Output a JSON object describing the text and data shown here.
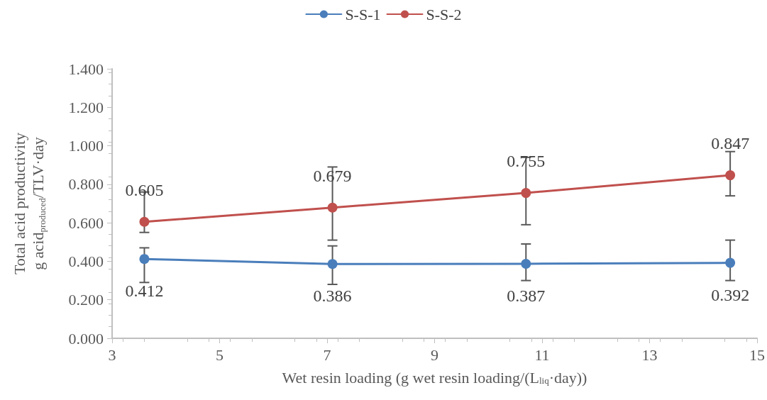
{
  "chart_data": {
    "type": "line",
    "xlabel": "Wet resin loading (g wet resin loading/(L$_{liq}$·day))",
    "ylabel": "Total acid productivity\ng acid$_{produced}$/TLV·day",
    "x": [
      3.6,
      7.1,
      10.7,
      14.5
    ],
    "series": [
      {
        "name": "S-S-1",
        "color": "#4a7ebb",
        "values": [
          0.412,
          0.386,
          0.387,
          0.392
        ],
        "errors": [
          [
            0.29,
            0.47
          ],
          [
            0.28,
            0.48
          ],
          [
            0.3,
            0.49
          ],
          [
            0.3,
            0.51
          ]
        ]
      },
      {
        "name": "S-S-2",
        "color": "#c0504d",
        "values": [
          0.605,
          0.679,
          0.755,
          0.847
        ],
        "errors": [
          [
            0.55,
            0.76
          ],
          [
            0.51,
            0.89
          ],
          [
            0.59,
            0.94
          ],
          [
            0.74,
            0.97
          ]
        ]
      }
    ],
    "xlim": [
      3,
      15
    ],
    "xticks": [
      3,
      5,
      7,
      9,
      11,
      13,
      15
    ],
    "ylim": [
      0,
      1.4
    ],
    "yticks": [
      {
        "value": 0,
        "label": "0.000"
      },
      {
        "value": 0.2,
        "label": "0.200"
      },
      {
        "value": 0.4,
        "label": "0.400"
      },
      {
        "value": 0.6,
        "label": "0.600"
      },
      {
        "value": 0.8,
        "label": "0.800"
      },
      {
        "value": 1.0,
        "label": "1.000"
      },
      {
        "value": 1.2,
        "label": "1.200"
      },
      {
        "value": 1.4,
        "label": "1.400"
      }
    ],
    "data_labels": true,
    "legend": "top",
    "marker": "circle",
    "line_style": "solid",
    "grid": false
  }
}
